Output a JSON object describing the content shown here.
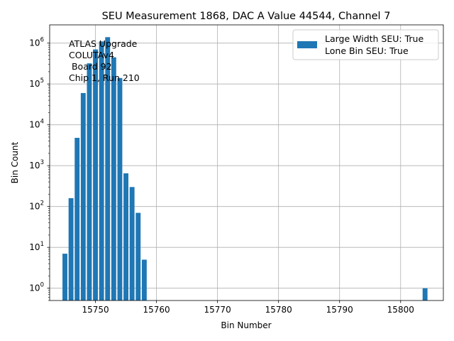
{
  "chart_data": {
    "type": "bar",
    "title": "SEU Measurement 1868, DAC A Value 44544, Channel 7",
    "xlabel": "Bin Number",
    "ylabel": "Bin Count",
    "yscale": "log",
    "xlim": [
      15742.5,
      15807.0
    ],
    "ylim": [
      0.5,
      2800000
    ],
    "xticks": [
      15750,
      15760,
      15770,
      15780,
      15790,
      15800
    ],
    "yticks": [
      {
        "value": 1,
        "exp": "0"
      },
      {
        "value": 10,
        "exp": "1"
      },
      {
        "value": 100,
        "exp": "2"
      },
      {
        "value": 1000,
        "exp": "3"
      },
      {
        "value": 10000,
        "exp": "4"
      },
      {
        "value": 100000,
        "exp": "5"
      },
      {
        "value": 1000000,
        "exp": "6"
      }
    ],
    "grid": true,
    "bar_color": "#1f77b4",
    "legend": {
      "position": "top-right",
      "entries": [
        "Large Width SEU: True",
        "Lone Bin SEU: True"
      ]
    },
    "annotation": [
      "ATLAS Upgrade",
      "COLUTAv4",
      " Board 92",
      "Chip 1, Run 210"
    ],
    "series": [
      {
        "x": [
          15745,
          15746,
          15747,
          15748,
          15749,
          15750,
          15751,
          15752,
          15753,
          15754,
          15755,
          15756,
          15757,
          15758,
          15804
        ],
        "values": [
          7,
          160,
          4800,
          60000,
          320000,
          700000,
          1100000,
          1400000,
          450000,
          140000,
          650,
          300,
          70,
          5,
          1
        ]
      }
    ]
  }
}
